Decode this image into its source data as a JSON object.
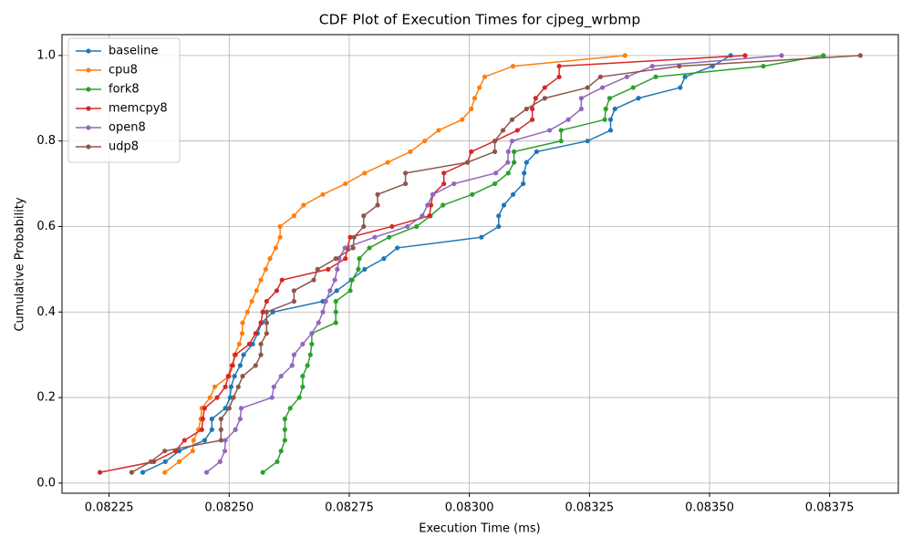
{
  "chart_data": {
    "type": "line",
    "title": "CDF Plot of Execution Times for cjpeg_wrbmp",
    "x_label": "Execution Time (ms)",
    "y_label": "Cumulative Probability",
    "xlim": [
      0.082152,
      0.083893
    ],
    "ylim": [
      -0.02375,
      1.04875
    ],
    "xticks": [
      0.08225,
      {
        "value": 0.0825,
        "label": "0.08250"
      },
      0.08275,
      {
        "value": 0.083,
        "label": "0.08300"
      },
      0.08325,
      {
        "value": 0.0835,
        "label": "0.08350"
      },
      0.08375
    ],
    "yticks": [
      {
        "value": 0,
        "label": "0.0"
      },
      0.2,
      0.4,
      0.6,
      0.8,
      {
        "value": 1,
        "label": "1.0"
      }
    ],
    "grid": true,
    "legend": "upper left",
    "series": [
      {
        "name": "baseline",
        "color": "#1f77b4",
        "x": [
          0.08232,
          0.082367,
          0.082396,
          0.082449,
          0.082464,
          0.082464,
          0.082492,
          0.082502,
          0.082504,
          0.082511,
          0.082523,
          0.08253,
          0.082549,
          0.082559,
          0.082568,
          0.082591,
          0.082695,
          0.082724,
          0.082754,
          0.082782,
          0.082822,
          0.08285,
          0.083025,
          0.083061,
          0.083061,
          0.083072,
          0.083091,
          0.083112,
          0.083114,
          0.083119,
          0.08314,
          0.083246,
          0.083294,
          0.083294,
          0.083303,
          0.083352,
          0.083439,
          0.083449,
          0.083506,
          0.083544
        ],
        "values": [
          0.025,
          0.05,
          0.075,
          0.1,
          0.125,
          0.15,
          0.175,
          0.2,
          0.225,
          0.25,
          0.275,
          0.3,
          0.325,
          0.35,
          0.375,
          0.4,
          0.425,
          0.45,
          0.475,
          0.5,
          0.525,
          0.55,
          0.575,
          0.6,
          0.625,
          0.65,
          0.675,
          0.7,
          0.725,
          0.75,
          0.775,
          0.8,
          0.825,
          0.85,
          0.875,
          0.9,
          0.925,
          0.95,
          0.975,
          1.0
        ]
      },
      {
        "name": "cpu8",
        "color": "#ff7f0e",
        "x": [
          0.082366,
          0.082396,
          0.082424,
          0.082426,
          0.082436,
          0.082441,
          0.082443,
          0.08246,
          0.08247,
          0.0825,
          0.082508,
          0.082511,
          0.082521,
          0.082527,
          0.082528,
          0.082538,
          0.082547,
          0.082557,
          0.082566,
          0.082576,
          0.082585,
          0.082597,
          0.082606,
          0.082606,
          0.082635,
          0.082655,
          0.082695,
          0.082742,
          0.082782,
          0.08283,
          0.082877,
          0.082907,
          0.082936,
          0.082985,
          0.083004,
          0.083011,
          0.083021,
          0.083032,
          0.083091,
          0.083324
        ],
        "values": [
          0.025,
          0.05,
          0.075,
          0.1,
          0.125,
          0.15,
          0.175,
          0.2,
          0.225,
          0.25,
          0.275,
          0.3,
          0.325,
          0.35,
          0.375,
          0.4,
          0.425,
          0.45,
          0.475,
          0.5,
          0.525,
          0.55,
          0.575,
          0.6,
          0.625,
          0.65,
          0.675,
          0.7,
          0.725,
          0.75,
          0.775,
          0.8,
          0.825,
          0.85,
          0.875,
          0.9,
          0.925,
          0.95,
          0.975,
          1.0
        ]
      },
      {
        "name": "fork8",
        "color": "#2ca02c",
        "x": [
          0.08257,
          0.0826,
          0.082608,
          0.082616,
          0.082616,
          0.082616,
          0.082627,
          0.082646,
          0.082653,
          0.082653,
          0.082663,
          0.082669,
          0.082672,
          0.082672,
          0.082722,
          0.082722,
          0.082722,
          0.082752,
          0.082756,
          0.082769,
          0.082771,
          0.082792,
          0.082833,
          0.08289,
          0.082919,
          0.082945,
          0.083006,
          0.083053,
          0.083081,
          0.083093,
          0.083093,
          0.083191,
          0.083191,
          0.083282,
          0.083284,
          0.083292,
          0.083341,
          0.083388,
          0.083612,
          0.083737
        ],
        "values": [
          0.025,
          0.05,
          0.075,
          0.1,
          0.125,
          0.15,
          0.175,
          0.2,
          0.225,
          0.25,
          0.275,
          0.3,
          0.325,
          0.35,
          0.375,
          0.4,
          0.425,
          0.45,
          0.475,
          0.5,
          0.525,
          0.55,
          0.575,
          0.6,
          0.625,
          0.65,
          0.675,
          0.7,
          0.725,
          0.75,
          0.775,
          0.8,
          0.825,
          0.85,
          0.875,
          0.9,
          0.925,
          0.95,
          0.975,
          1.0
        ]
      },
      {
        "name": "memcpy8",
        "color": "#d62728",
        "x": [
          0.082231,
          0.082343,
          0.082388,
          0.082407,
          0.082443,
          0.082445,
          0.082449,
          0.082475,
          0.082492,
          0.082498,
          0.082506,
          0.082513,
          0.082542,
          0.082555,
          0.082566,
          0.08257,
          0.082578,
          0.082599,
          0.08261,
          0.082706,
          0.082742,
          0.082746,
          0.082752,
          0.082839,
          0.082917,
          0.08292,
          0.082924,
          0.082947,
          0.082947,
          0.082996,
          0.083004,
          0.083053,
          0.0831,
          0.083131,
          0.083131,
          0.083138,
          0.083157,
          0.083187,
          0.083187,
          0.083574
        ],
        "values": [
          0.025,
          0.05,
          0.075,
          0.1,
          0.125,
          0.15,
          0.175,
          0.2,
          0.225,
          0.25,
          0.275,
          0.3,
          0.325,
          0.35,
          0.375,
          0.4,
          0.425,
          0.45,
          0.475,
          0.5,
          0.525,
          0.55,
          0.575,
          0.6,
          0.625,
          0.65,
          0.675,
          0.7,
          0.725,
          0.75,
          0.775,
          0.8,
          0.825,
          0.85,
          0.875,
          0.9,
          0.925,
          0.95,
          0.975,
          1.0
        ]
      },
      {
        "name": "open8",
        "color": "#9467bd",
        "x": [
          0.082453,
          0.082481,
          0.082491,
          0.082492,
          0.082513,
          0.082523,
          0.082525,
          0.082589,
          0.082593,
          0.082608,
          0.082631,
          0.082635,
          0.082653,
          0.082672,
          0.082686,
          0.082695,
          0.082701,
          0.08271,
          0.08272,
          0.082725,
          0.082729,
          0.082741,
          0.082803,
          0.082871,
          0.082902,
          0.082913,
          0.082924,
          0.082968,
          0.083055,
          0.08308,
          0.083081,
          0.083089,
          0.083167,
          0.083206,
          0.083233,
          0.083233,
          0.083277,
          0.083328,
          0.083381,
          0.08365
        ],
        "values": [
          0.025,
          0.05,
          0.075,
          0.1,
          0.125,
          0.15,
          0.175,
          0.2,
          0.225,
          0.25,
          0.275,
          0.3,
          0.325,
          0.35,
          0.375,
          0.4,
          0.425,
          0.45,
          0.475,
          0.5,
          0.525,
          0.55,
          0.575,
          0.6,
          0.625,
          0.65,
          0.675,
          0.7,
          0.725,
          0.75,
          0.775,
          0.8,
          0.825,
          0.85,
          0.875,
          0.9,
          0.925,
          0.95,
          0.975,
          1.0
        ]
      },
      {
        "name": "udp8",
        "color": "#8c564b",
        "x": [
          0.082297,
          0.082337,
          0.082366,
          0.082483,
          0.082483,
          0.082483,
          0.0825,
          0.082509,
          0.082519,
          0.082528,
          0.082555,
          0.082566,
          0.082566,
          0.082578,
          0.082578,
          0.082578,
          0.082635,
          0.082635,
          0.082676,
          0.082684,
          0.082722,
          0.082758,
          0.08276,
          0.08278,
          0.08278,
          0.082809,
          0.082809,
          0.082867,
          0.082867,
          0.082996,
          0.083053,
          0.083053,
          0.08307,
          0.083089,
          0.083119,
          0.083157,
          0.083246,
          0.083273,
          0.083437,
          0.083814
        ],
        "values": [
          0.025,
          0.05,
          0.075,
          0.1,
          0.125,
          0.15,
          0.175,
          0.2,
          0.225,
          0.25,
          0.275,
          0.3,
          0.325,
          0.35,
          0.375,
          0.4,
          0.425,
          0.45,
          0.475,
          0.5,
          0.525,
          0.55,
          0.575,
          0.6,
          0.625,
          0.65,
          0.675,
          0.7,
          0.725,
          0.75,
          0.775,
          0.8,
          0.825,
          0.85,
          0.875,
          0.9,
          0.925,
          0.95,
          0.975,
          1.0
        ]
      }
    ]
  }
}
